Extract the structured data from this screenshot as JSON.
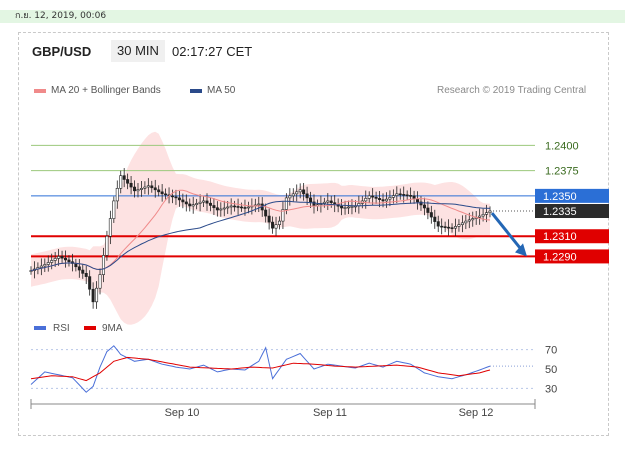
{
  "header": {
    "datetime": "ก.ย. 12, 2019, 00:06",
    "symbol": "GBP/USD",
    "timeframe": "30 MIN",
    "clock": "02:17:27 CET"
  },
  "legend": {
    "ma20_label": "MA 20 + Bollinger Bands",
    "ma50_label": "MA 50",
    "credit": "Research © 2019 Trading Central"
  },
  "colors": {
    "ma20": "#f08a8a",
    "ma50": "#2a4a8a",
    "level_green": "#9cc87c",
    "level_blue": "#2b6fd6",
    "level_red": "#e00000",
    "arrow": "#2467b5",
    "rsi": "#4a6fd8",
    "ma9": "#e00000"
  },
  "chart_data": [
    {
      "type": "candlestick",
      "x_labels": [
        "Sep 10",
        "Sep 11",
        "Sep 12"
      ],
      "ylim": [
        1.2227,
        1.2445
      ],
      "price_current": "1.2335",
      "levels": [
        {
          "label": "1.2400",
          "value": 1.24,
          "style": "green"
        },
        {
          "label": "1.2375",
          "value": 1.2375,
          "style": "green"
        },
        {
          "label": "1.2350",
          "value": 1.235,
          "style": "blue"
        },
        {
          "label": "1.2310",
          "value": 1.231,
          "style": "red"
        },
        {
          "label": "1.2290",
          "value": 1.229,
          "style": "red"
        }
      ],
      "forecast": "down toward 1.2290",
      "close_path": [
        [
          0,
          1.2276
        ],
        [
          4,
          1.2282
        ],
        [
          8,
          1.229
        ],
        [
          12,
          1.2283
        ],
        [
          16,
          1.227
        ],
        [
          18,
          1.2245
        ],
        [
          20,
          1.2272
        ],
        [
          22,
          1.231
        ],
        [
          24,
          1.2345
        ],
        [
          26,
          1.237
        ],
        [
          30,
          1.2355
        ],
        [
          34,
          1.236
        ],
        [
          38,
          1.2352
        ],
        [
          42,
          1.2348
        ],
        [
          46,
          1.234
        ],
        [
          50,
          1.2345
        ],
        [
          54,
          1.2336
        ],
        [
          58,
          1.234
        ],
        [
          62,
          1.2338
        ],
        [
          66,
          1.2342
        ],
        [
          70,
          1.2318
        ],
        [
          72,
          1.2325
        ],
        [
          74,
          1.2348
        ],
        [
          78,
          1.2356
        ],
        [
          82,
          1.234
        ],
        [
          86,
          1.2345
        ],
        [
          90,
          1.2338
        ],
        [
          94,
          1.234
        ],
        [
          98,
          1.235
        ],
        [
          102,
          1.2345
        ],
        [
          106,
          1.2352
        ],
        [
          110,
          1.235
        ],
        [
          114,
          1.2338
        ],
        [
          118,
          1.232
        ],
        [
          122,
          1.2318
        ],
        [
          126,
          1.2325
        ],
        [
          130,
          1.233
        ],
        [
          133,
          1.2335
        ]
      ],
      "series": [
        {
          "name": "MA 20 + Bollinger Bands"
        },
        {
          "name": "MA 50"
        }
      ]
    },
    {
      "type": "line",
      "ylim": [
        20,
        80
      ],
      "yticks": [
        "70",
        "50",
        "30"
      ],
      "guides": [
        70,
        30
      ],
      "series": [
        {
          "name": "RSI",
          "points": [
            [
              0,
              34
            ],
            [
              4,
              47
            ],
            [
              8,
              44
            ],
            [
              12,
              41
            ],
            [
              16,
              26
            ],
            [
              18,
              32
            ],
            [
              20,
              52
            ],
            [
              22,
              68
            ],
            [
              24,
              74
            ],
            [
              26,
              65
            ],
            [
              30,
              58
            ],
            [
              34,
              60
            ],
            [
              38,
              55
            ],
            [
              42,
              52
            ],
            [
              46,
              50
            ],
            [
              50,
              54
            ],
            [
              54,
              47
            ],
            [
              58,
              50
            ],
            [
              62,
              49
            ],
            [
              66,
              58
            ],
            [
              68,
              72
            ],
            [
              70,
              40
            ],
            [
              74,
              60
            ],
            [
              78,
              66
            ],
            [
              82,
              50
            ],
            [
              86,
              55
            ],
            [
              90,
              53
            ],
            [
              94,
              51
            ],
            [
              98,
              56
            ],
            [
              102,
              52
            ],
            [
              106,
              58
            ],
            [
              110,
              55
            ],
            [
              114,
              46
            ],
            [
              118,
              42
            ],
            [
              122,
              40
            ],
            [
              126,
              44
            ],
            [
              130,
              49
            ],
            [
              133,
              53
            ]
          ]
        },
        {
          "name": "9MA",
          "points": [
            [
              0,
              40
            ],
            [
              6,
              43
            ],
            [
              12,
              42
            ],
            [
              16,
              38
            ],
            [
              20,
              46
            ],
            [
              24,
              58
            ],
            [
              28,
              62
            ],
            [
              34,
              60
            ],
            [
              40,
              56
            ],
            [
              46,
              52
            ],
            [
              52,
              51
            ],
            [
              58,
              50
            ],
            [
              64,
              52
            ],
            [
              70,
              51
            ],
            [
              76,
              56
            ],
            [
              82,
              55
            ],
            [
              88,
              53
            ],
            [
              94,
              52
            ],
            [
              100,
              53
            ],
            [
              106,
              54
            ],
            [
              112,
              52
            ],
            [
              118,
              46
            ],
            [
              124,
              43
            ],
            [
              130,
              46
            ],
            [
              133,
              49
            ]
          ]
        }
      ]
    }
  ]
}
